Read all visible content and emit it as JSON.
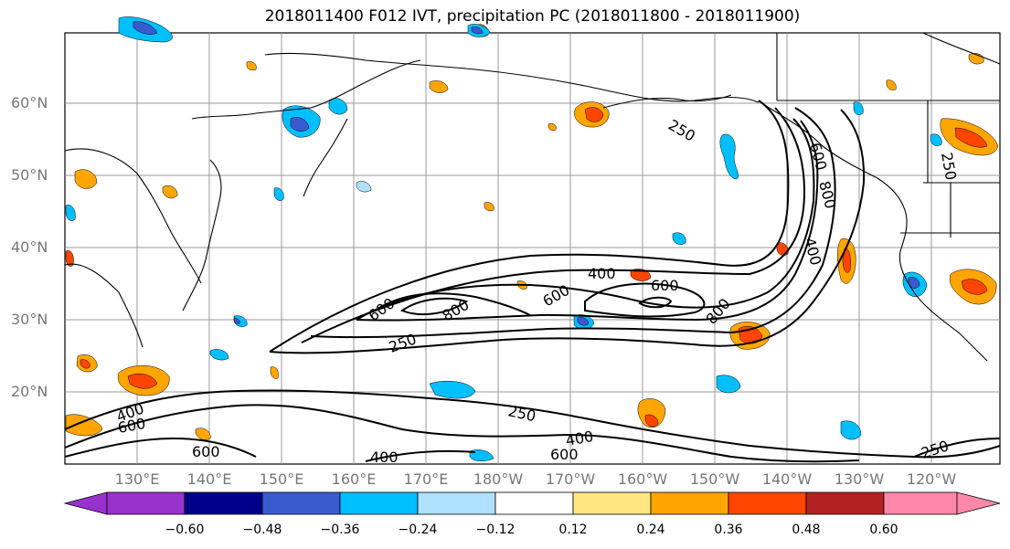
{
  "title": "2018011400 F012 IVT, precipitation PC (2018011800 - 2018011900)",
  "lat_labels": [
    "60°N",
    "50°N",
    "40°N",
    "30°N",
    "20°N"
  ],
  "lon_labels": [
    "130°E",
    "140°E",
    "150°E",
    "160°E",
    "170°E",
    "180°W",
    "170°W",
    "160°W",
    "150°W",
    "140°W",
    "130°W",
    "120°W"
  ],
  "contour_labels": [
    "250",
    "250",
    "250",
    "250",
    "250",
    "400",
    "400",
    "400",
    "400",
    "400",
    "600",
    "600",
    "600",
    "600",
    "600",
    "600",
    "600",
    "800",
    "800",
    "800"
  ],
  "colorbar": {
    "ticks": [
      "−0.60",
      "−0.48",
      "−0.36",
      "−0.24",
      "−0.12",
      "0.12",
      "0.24",
      "0.36",
      "0.48",
      "0.60"
    ],
    "colors": [
      "#9932cc",
      "#00008b",
      "#3a5bd0",
      "#00bfff",
      "#b0e0ff",
      "#ffffff",
      "#ffe680",
      "#ffa500",
      "#ff4500",
      "#b22222",
      "#ff88aa"
    ]
  }
}
